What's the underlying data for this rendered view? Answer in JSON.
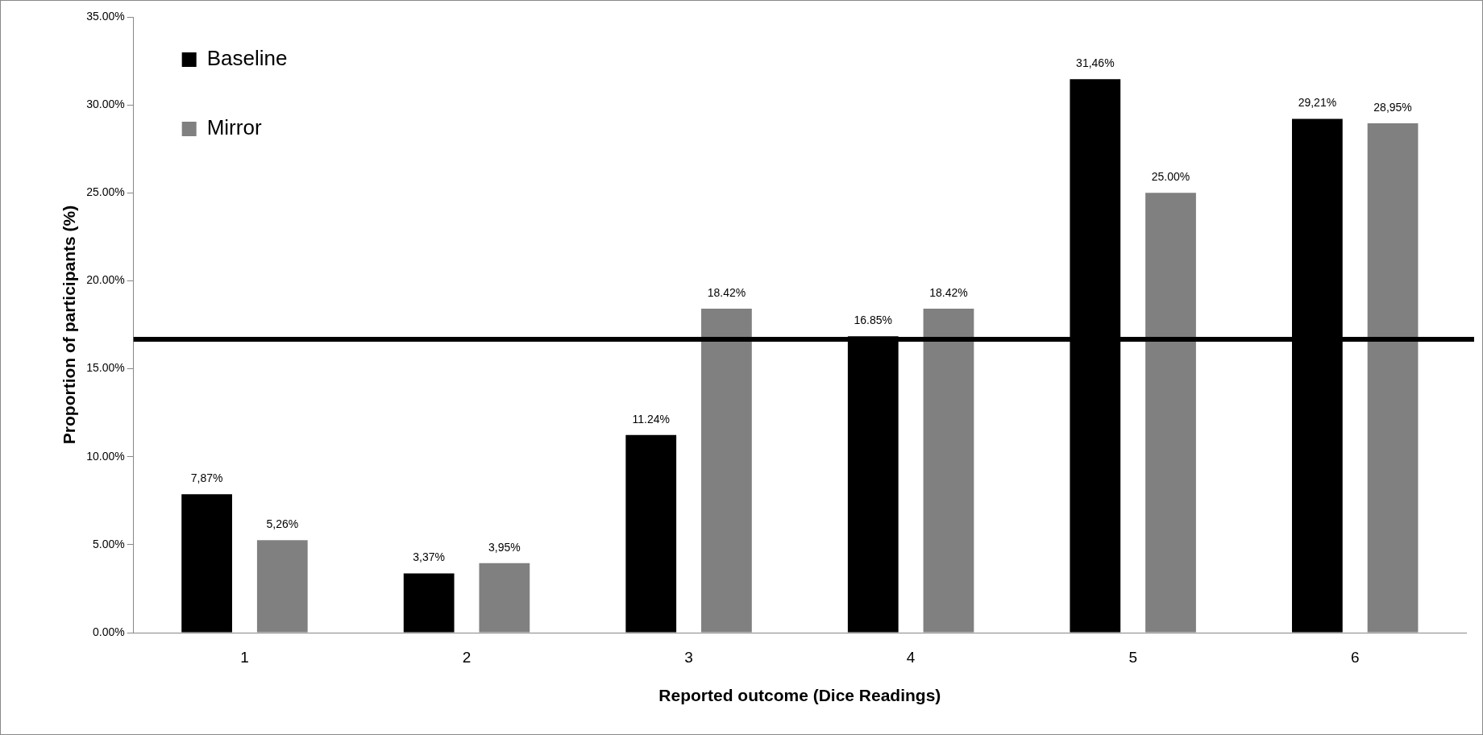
{
  "chart_data": {
    "type": "bar",
    "xlabel": "Reported outcome (Dice Readings)",
    "ylabel": "Proportion of participants (%)",
    "categories": [
      "1",
      "2",
      "3",
      "4",
      "5",
      "6"
    ],
    "series": [
      {
        "name": "Baseline",
        "color": "#000000",
        "values": [
          7.87,
          3.37,
          11.24,
          16.85,
          31.46,
          29.21
        ],
        "value_labels": [
          "7,87%",
          "3,37%",
          "11.24%",
          "16.85%",
          "31,46%",
          "29,21%"
        ]
      },
      {
        "name": "Mirror",
        "color": "#808080",
        "values": [
          5.26,
          3.95,
          18.42,
          18.42,
          25.0,
          28.95
        ],
        "value_labels": [
          "5,26%",
          "3,95%",
          "18.42%",
          "18.42%",
          "25.00%",
          "28,95%"
        ]
      }
    ],
    "ylim": [
      0,
      35
    ],
    "yticks": [
      {
        "value": 0,
        "label": "0.00%"
      },
      {
        "value": 5,
        "label": "5.00%"
      },
      {
        "value": 10,
        "label": "10.00%"
      },
      {
        "value": 15,
        "label": "15.00%"
      },
      {
        "value": 20,
        "label": "20.00%"
      },
      {
        "value": 25,
        "label": "25.00%"
      },
      {
        "value": 30,
        "label": "30.00%"
      },
      {
        "value": 35,
        "label": "35.00%"
      }
    ],
    "ref_lines": [
      {
        "axis": "y",
        "value": 16.67,
        "color": "#000000"
      }
    ],
    "grid": false,
    "legend": "top left"
  }
}
